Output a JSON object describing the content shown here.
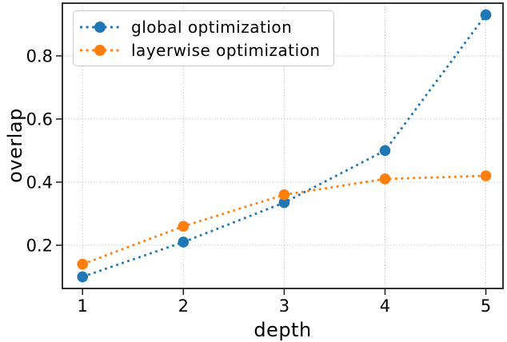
{
  "chart_data": {
    "type": "line",
    "title": "",
    "xlabel": "depth",
    "ylabel": "overlap",
    "x": [
      1,
      2,
      3,
      4,
      5
    ],
    "series": [
      {
        "name": "global optimization",
        "color": "#1f77b4",
        "linestyle": "dotted",
        "marker": "circle",
        "values": [
          0.1,
          0.21,
          0.335,
          0.5,
          0.93
        ]
      },
      {
        "name": "layerwise optimization",
        "color": "#ff7f0e",
        "linestyle": "dotted",
        "marker": "circle",
        "values": [
          0.14,
          0.26,
          0.36,
          0.41,
          0.42
        ]
      }
    ],
    "xticks": [
      1,
      2,
      3,
      4,
      5
    ],
    "xtick_labels": [
      "1",
      "2",
      "3",
      "4",
      "5"
    ],
    "yticks": [
      0.2,
      0.4,
      0.6,
      0.8
    ],
    "ytick_labels": [
      "0.2",
      "0.4",
      "0.6",
      "0.8"
    ],
    "xlim": [
      0.8,
      5.17
    ],
    "ylim": [
      0.063,
      0.967
    ],
    "grid": true,
    "legend_position": "upper left",
    "colors": {
      "grid": "#b0b0b0",
      "spine": "#1c1c1c",
      "text": "#000000",
      "background": "#ffffff"
    }
  }
}
